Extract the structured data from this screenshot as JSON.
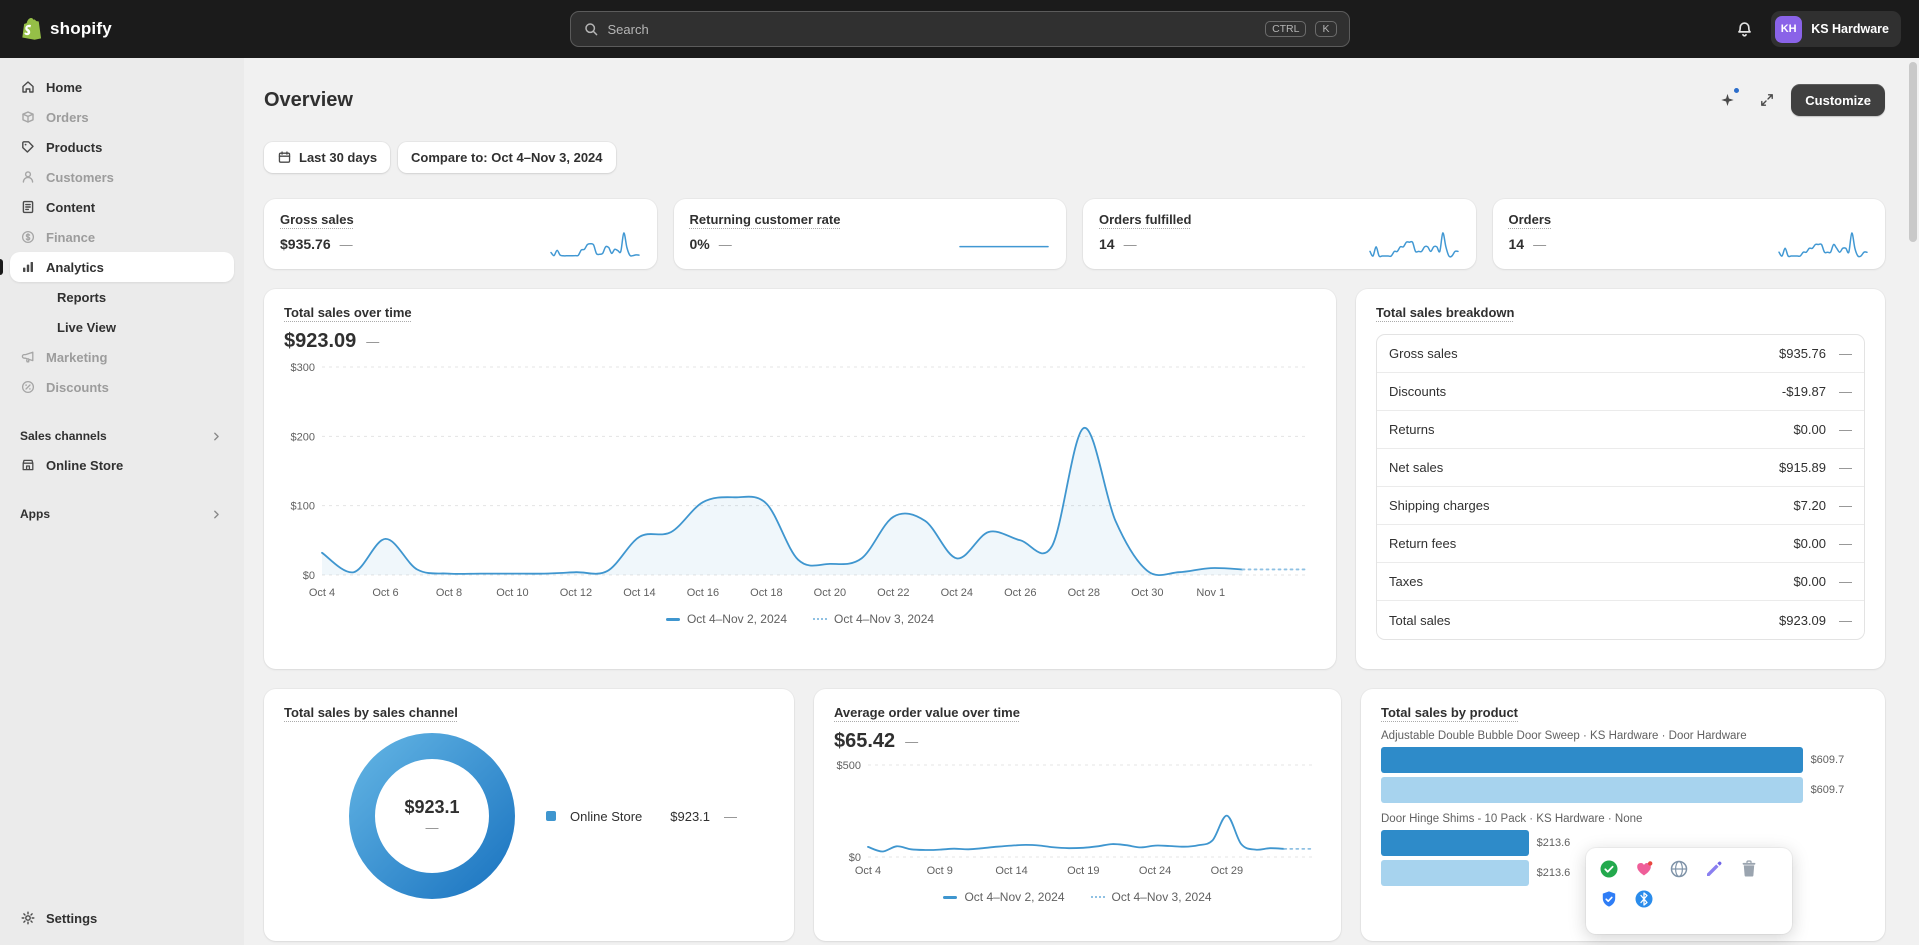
{
  "topbar": {
    "brand": "shopify",
    "search": {
      "placeholder": "Search",
      "shortcut_ctrl": "CTRL",
      "shortcut_k": "K"
    },
    "store": {
      "initials": "KH",
      "name": "KS Hardware"
    }
  },
  "sidebar": {
    "items": [
      {
        "label": "Home",
        "icon": "home",
        "state": "default"
      },
      {
        "label": "Orders",
        "icon": "orders",
        "state": "dimmed"
      },
      {
        "label": "Products",
        "icon": "products",
        "state": "default"
      },
      {
        "label": "Customers",
        "icon": "customers",
        "state": "dimmed"
      },
      {
        "label": "Content",
        "icon": "content",
        "state": "default"
      },
      {
        "label": "Finance",
        "icon": "finance",
        "state": "dimmed"
      },
      {
        "label": "Analytics",
        "icon": "analytics",
        "state": "selected"
      },
      {
        "label": "Reports",
        "icon": "",
        "state": "sub"
      },
      {
        "label": "Live View",
        "icon": "",
        "state": "sub"
      },
      {
        "label": "Marketing",
        "icon": "marketing",
        "state": "dimmed"
      },
      {
        "label": "Discounts",
        "icon": "discounts",
        "state": "dimmed"
      }
    ],
    "sections": [
      {
        "label": "Sales channels",
        "items": [
          {
            "label": "Online Store",
            "icon": "store"
          }
        ]
      },
      {
        "label": "Apps",
        "items": []
      }
    ],
    "settings_label": "Settings"
  },
  "page": {
    "title": "Overview",
    "customize_label": "Customize"
  },
  "filters": {
    "date_range_label": "Last 30 days",
    "compare_label": "Compare to: Oct 4–Nov 3, 2024"
  },
  "metrics": [
    {
      "label": "Gross sales",
      "value": "$935.76",
      "change": "—",
      "spark": [
        32,
        4,
        52,
        8,
        2,
        2,
        2,
        2,
        4,
        6,
        55,
        62,
        105,
        112,
        103,
        22,
        16,
        24,
        84,
        78,
        24,
        62,
        50,
        42,
        212,
        78,
        6,
        4,
        10,
        8
      ]
    },
    {
      "label": "Returning customer rate",
      "value": "0%",
      "change": "—",
      "spark": [
        0,
        0,
        0,
        0,
        0,
        0,
        0,
        0,
        0,
        0,
        0,
        0,
        0,
        0,
        0,
        0,
        0,
        0,
        0,
        0,
        0,
        0,
        0,
        0,
        0,
        0,
        0,
        0,
        0,
        0
      ]
    },
    {
      "label": "Orders fulfilled",
      "value": "14",
      "change": "—",
      "spark": [
        1,
        0,
        2,
        0,
        0,
        0,
        0,
        0,
        1,
        1,
        2,
        2,
        3,
        3,
        3,
        1,
        1,
        1,
        2,
        2,
        1,
        2,
        2,
        1,
        5,
        2,
        0,
        0,
        1,
        1
      ]
    },
    {
      "label": "Orders",
      "value": "14",
      "change": "—",
      "spark": [
        1,
        0,
        2,
        0,
        0,
        0,
        0,
        0,
        1,
        1,
        2,
        2,
        3,
        3,
        3,
        1,
        1,
        1,
        3,
        2,
        1,
        2,
        2,
        1,
        6,
        2,
        0,
        0,
        1,
        1
      ]
    }
  ],
  "chart_data": [
    {
      "type": "line",
      "title": "Total sales over time",
      "headline_value": "$923.09",
      "change": "—",
      "ylim": [
        0,
        300
      ],
      "yticks": [
        {
          "v": 0,
          "label": "$0"
        },
        {
          "v": 100,
          "label": "$100"
        },
        {
          "v": 200,
          "label": "$200"
        },
        {
          "v": 300,
          "label": "$300"
        }
      ],
      "xticks": [
        {
          "i": 0,
          "label": "Oct 4"
        },
        {
          "i": 2,
          "label": "Oct 6"
        },
        {
          "i": 4,
          "label": "Oct 8"
        },
        {
          "i": 6,
          "label": "Oct 10"
        },
        {
          "i": 8,
          "label": "Oct 12"
        },
        {
          "i": 10,
          "label": "Oct 14"
        },
        {
          "i": 12,
          "label": "Oct 16"
        },
        {
          "i": 14,
          "label": "Oct 18"
        },
        {
          "i": 16,
          "label": "Oct 20"
        },
        {
          "i": 18,
          "label": "Oct 22"
        },
        {
          "i": 20,
          "label": "Oct 24"
        },
        {
          "i": 22,
          "label": "Oct 26"
        },
        {
          "i": 24,
          "label": "Oct 28"
        },
        {
          "i": 26,
          "label": "Oct 30"
        },
        {
          "i": 28,
          "label": "Nov 1"
        }
      ],
      "x_domain": 31,
      "series": [
        {
          "name": "Oct 4–Nov 2, 2024",
          "style": "solid",
          "values": [
            32,
            4,
            52,
            8,
            2,
            2,
            2,
            2,
            4,
            6,
            55,
            62,
            105,
            112,
            103,
            22,
            16,
            24,
            84,
            78,
            24,
            62,
            50,
            42,
            212,
            78,
            6,
            4,
            10,
            8
          ]
        },
        {
          "name": "Oct 4–Nov 3, 2024",
          "style": "dotted",
          "values": null
        }
      ]
    },
    {
      "type": "table",
      "title": "Total sales breakdown",
      "rows": [
        {
          "label": "Gross sales",
          "value": "$935.76",
          "change": "—"
        },
        {
          "label": "Discounts",
          "value": "-$19.87",
          "change": "—"
        },
        {
          "label": "Returns",
          "value": "$0.00",
          "change": "—"
        },
        {
          "label": "Net sales",
          "value": "$915.89",
          "change": "—"
        },
        {
          "label": "Shipping charges",
          "value": "$7.20",
          "change": "—"
        },
        {
          "label": "Return fees",
          "value": "$0.00",
          "change": "—"
        },
        {
          "label": "Taxes",
          "value": "$0.00",
          "change": "—"
        },
        {
          "label": "Total sales",
          "value": "$923.09",
          "change": "—"
        }
      ]
    },
    {
      "type": "donut",
      "title": "Total sales by sales channel",
      "center_value": "$923.1",
      "center_change": "—",
      "legend": [
        {
          "label": "Online Store",
          "value": "$923.1",
          "change": "—"
        }
      ]
    },
    {
      "type": "line",
      "title": "Average order value over time",
      "headline_value": "$65.42",
      "change": "—",
      "ylim": [
        0,
        500
      ],
      "yticks": [
        {
          "v": 0,
          "label": "$0"
        },
        {
          "v": 500,
          "label": "$500"
        }
      ],
      "xticks": [
        {
          "i": 0,
          "label": "Oct 4"
        },
        {
          "i": 5,
          "label": "Oct 9"
        },
        {
          "i": 10,
          "label": "Oct 14"
        },
        {
          "i": 15,
          "label": "Oct 19"
        },
        {
          "i": 20,
          "label": "Oct 24"
        },
        {
          "i": 25,
          "label": "Oct 29"
        }
      ],
      "x_domain": 31,
      "legend": [
        "Oct 4–Nov 2, 2024",
        "Oct 4–Nov 3, 2024"
      ],
      "series": [
        {
          "name": "Oct 4–Nov 2, 2024",
          "style": "solid",
          "values": [
            55,
            30,
            58,
            42,
            38,
            40,
            45,
            42,
            48,
            56,
            62,
            66,
            62,
            52,
            48,
            50,
            58,
            70,
            64,
            52,
            62,
            60,
            56,
            64,
            90,
            225,
            70,
            40,
            48,
            44
          ]
        },
        {
          "name": "Oct 4–Nov 3, 2024",
          "style": "dotted",
          "values": null
        }
      ]
    },
    {
      "type": "bar",
      "title": "Total sales by product",
      "max": 700,
      "products": [
        {
          "name": "Adjustable Double Bubble Door Sweep · KS Hardware · Door Hardware",
          "current": 609.7,
          "previous": 609.7,
          "current_label": "$609.7",
          "previous_label": "$609.7"
        },
        {
          "name": "Door Hinge Shims - 10 Pack · KS Hardware · None",
          "current": 213.6,
          "previous": 213.6,
          "current_label": "$213.6",
          "previous_label": "$213.6"
        }
      ]
    }
  ],
  "overlay": {
    "icons": [
      "check-circle",
      "heart",
      "globe",
      "pencil",
      "trash",
      "shield-check",
      "bluetooth"
    ]
  },
  "colors": {
    "accent_blue": "#3f96cf",
    "compare_blue": "#a7d3ee",
    "bar_dark": "#2e8bc9",
    "bar_light": "#a7d3ee",
    "topbar_bg": "#1b1b1b",
    "logo_green": "#95bf47",
    "avatar_purple": "#8a63e8"
  }
}
